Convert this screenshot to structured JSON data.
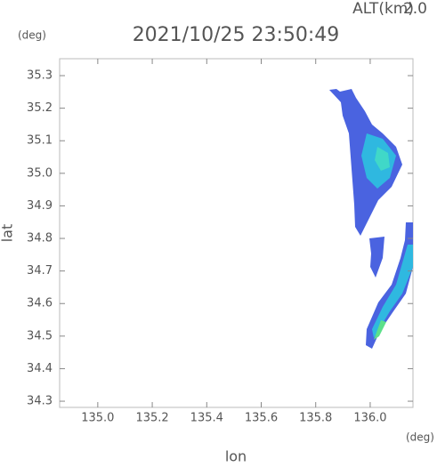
{
  "chart_data": {
    "type": "radar-map",
    "altitude_label": "ALT(km)",
    "altitude": "2.0",
    "title": "2021/10/25 23:50:49",
    "y_unit": "(deg)",
    "x_unit": "(deg)",
    "xlabel": "lon",
    "ylabel": "lat",
    "xlim": [
      134.86,
      136.157
    ],
    "ylim": [
      34.281,
      35.352
    ],
    "xticks": [
      {
        "value": 135.0,
        "label": "135.0"
      },
      135.2,
      135.4,
      135.6,
      135.8,
      {
        "value": 136.0,
        "label": "136.0"
      }
    ],
    "yticks": [
      34.3,
      34.4,
      34.5,
      34.6,
      34.7,
      34.8,
      34.9,
      {
        "value": 35.0,
        "label": "35.0"
      },
      35.1,
      35.2,
      35.3
    ]
  }
}
